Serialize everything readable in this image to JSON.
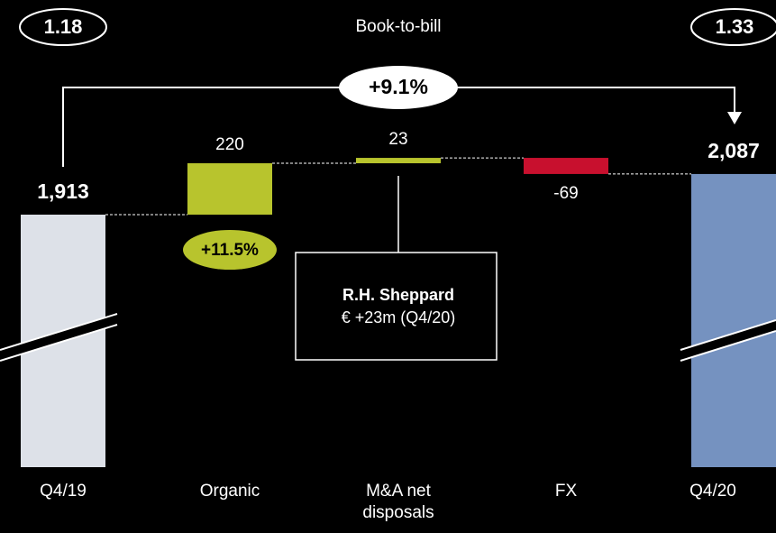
{
  "chart_data": {
    "type": "waterfall",
    "title": "Book-to-bill",
    "categories": [
      "Q4/19",
      "Organic",
      "M&A net disposals",
      "FX",
      "Q4/20"
    ],
    "values": [
      1913,
      220,
      23,
      -69,
      2087
    ],
    "value_labels": [
      "1,913",
      "220",
      "23",
      "-69",
      "2,087"
    ],
    "colors": [
      "#dde1e8",
      "#b8c42d",
      "#b8c42d",
      "#c8102e",
      "#7592c0"
    ],
    "book_to_bill": [
      "1.18",
      "1.33"
    ],
    "total_change": "+9.1%",
    "organic_change": "+11.5%",
    "annotation": {
      "title": "R.H. Sheppard",
      "text": "€ +23m (Q4/20)"
    }
  }
}
